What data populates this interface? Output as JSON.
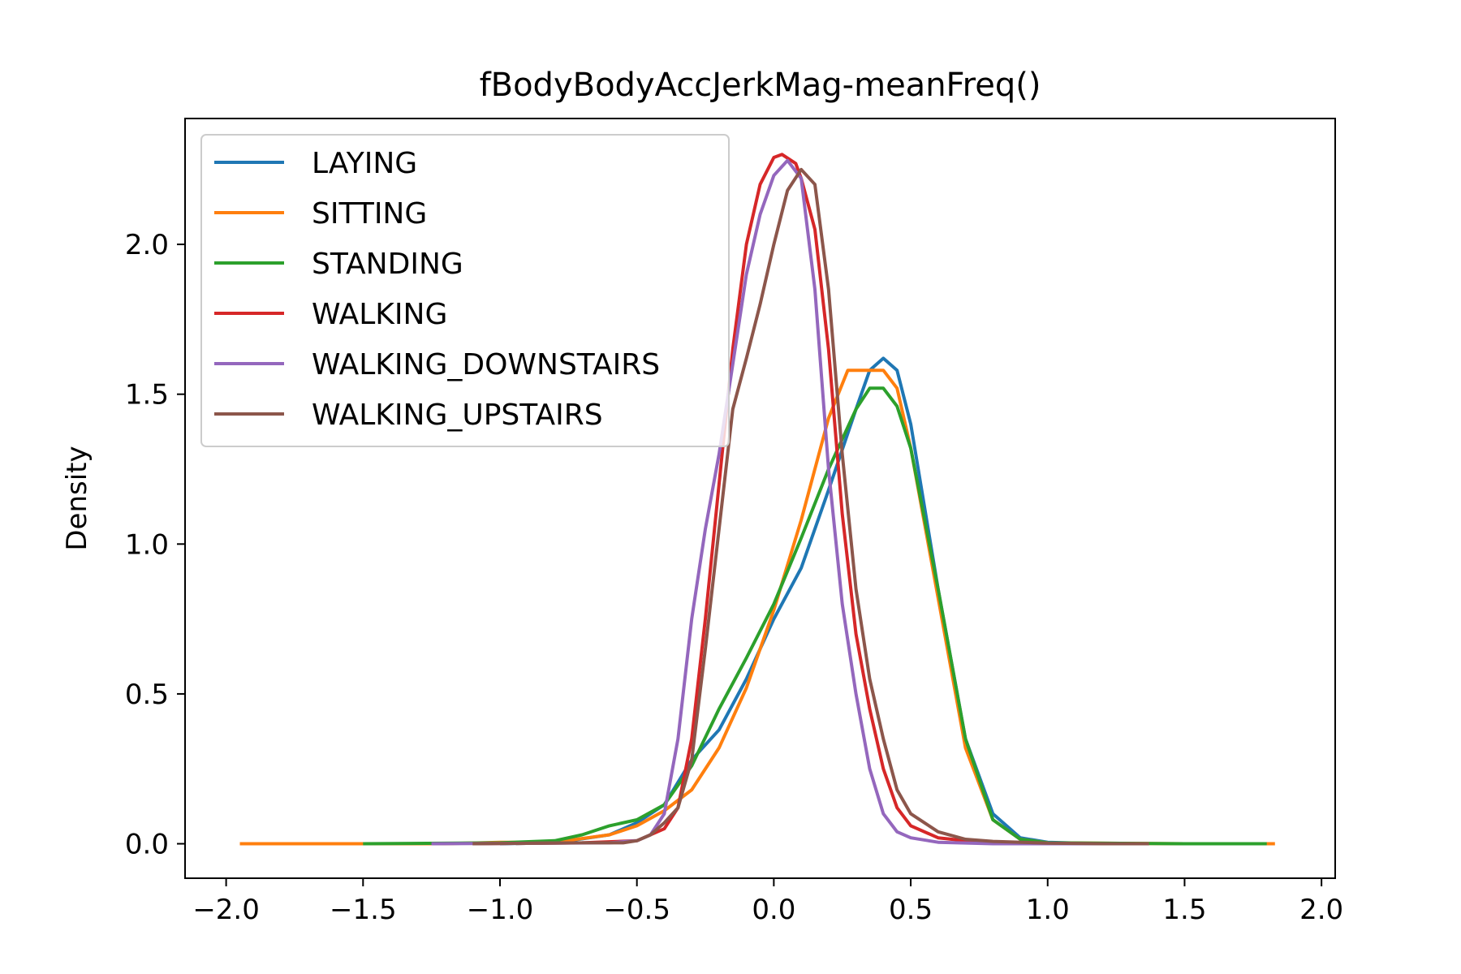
{
  "chart_data": {
    "type": "line",
    "title": "fBodyBodyAccJerkMag-meanFreq()",
    "xlabel": "",
    "ylabel": "Density",
    "xlim": [
      -2.15,
      2.05
    ],
    "ylim": [
      -0.115,
      2.42
    ],
    "xticks": [
      -2.0,
      -1.5,
      -1.0,
      -0.5,
      0.0,
      0.5,
      1.0,
      1.5,
      2.0
    ],
    "yticks": [
      0.0,
      0.5,
      1.0,
      1.5,
      2.0
    ],
    "xtick_labels": [
      "−2.0",
      "−1.5",
      "−1.0",
      "−0.5",
      "0.0",
      "0.5",
      "1.0",
      "1.5",
      "2.0"
    ],
    "ytick_labels": [
      "0.0",
      "0.5",
      "1.0",
      "1.5",
      "2.0"
    ],
    "grid": false,
    "legend_position": "top-left",
    "series": [
      {
        "name": "LAYING",
        "color": "#1f77b4",
        "points": [
          [
            -1.0,
            0.0
          ],
          [
            -0.8,
            0.003
          ],
          [
            -0.6,
            0.03
          ],
          [
            -0.5,
            0.07
          ],
          [
            -0.4,
            0.13
          ],
          [
            -0.3,
            0.28
          ],
          [
            -0.2,
            0.38
          ],
          [
            -0.1,
            0.55
          ],
          [
            0.0,
            0.75
          ],
          [
            0.1,
            0.92
          ],
          [
            0.2,
            1.18
          ],
          [
            0.3,
            1.45
          ],
          [
            0.35,
            1.58
          ],
          [
            0.4,
            1.62
          ],
          [
            0.45,
            1.58
          ],
          [
            0.5,
            1.4
          ],
          [
            0.6,
            0.85
          ],
          [
            0.7,
            0.35
          ],
          [
            0.8,
            0.1
          ],
          [
            0.9,
            0.02
          ],
          [
            1.0,
            0.005
          ],
          [
            1.2,
            0.0
          ],
          [
            1.37,
            0.0
          ]
        ]
      },
      {
        "name": "SITTING",
        "color": "#ff7f0e",
        "points": [
          [
            -1.95,
            0.0
          ],
          [
            -1.2,
            0.0
          ],
          [
            -1.0,
            0.005
          ],
          [
            -0.8,
            0.005
          ],
          [
            -0.6,
            0.03
          ],
          [
            -0.5,
            0.06
          ],
          [
            -0.4,
            0.11
          ],
          [
            -0.3,
            0.18
          ],
          [
            -0.2,
            0.32
          ],
          [
            -0.1,
            0.52
          ],
          [
            0.0,
            0.78
          ],
          [
            0.1,
            1.08
          ],
          [
            0.2,
            1.42
          ],
          [
            0.27,
            1.58
          ],
          [
            0.3,
            1.58
          ],
          [
            0.35,
            1.58
          ],
          [
            0.4,
            1.58
          ],
          [
            0.45,
            1.52
          ],
          [
            0.5,
            1.32
          ],
          [
            0.6,
            0.82
          ],
          [
            0.7,
            0.32
          ],
          [
            0.8,
            0.08
          ],
          [
            0.9,
            0.015
          ],
          [
            1.0,
            0.003
          ],
          [
            1.5,
            0.0
          ],
          [
            1.83,
            0.0
          ]
        ]
      },
      {
        "name": "STANDING",
        "color": "#2ca02c",
        "points": [
          [
            -1.5,
            0.0
          ],
          [
            -1.0,
            0.003
          ],
          [
            -0.8,
            0.01
          ],
          [
            -0.7,
            0.03
          ],
          [
            -0.6,
            0.06
          ],
          [
            -0.5,
            0.08
          ],
          [
            -0.4,
            0.13
          ],
          [
            -0.3,
            0.26
          ],
          [
            -0.2,
            0.45
          ],
          [
            -0.1,
            0.62
          ],
          [
            0.0,
            0.8
          ],
          [
            0.1,
            1.02
          ],
          [
            0.2,
            1.25
          ],
          [
            0.3,
            1.45
          ],
          [
            0.35,
            1.52
          ],
          [
            0.4,
            1.52
          ],
          [
            0.45,
            1.46
          ],
          [
            0.5,
            1.32
          ],
          [
            0.6,
            0.85
          ],
          [
            0.7,
            0.35
          ],
          [
            0.8,
            0.08
          ],
          [
            0.9,
            0.015
          ],
          [
            1.0,
            0.003
          ],
          [
            1.5,
            0.0
          ],
          [
            1.8,
            0.0
          ]
        ]
      },
      {
        "name": "WALKING",
        "color": "#d62728",
        "points": [
          [
            -1.1,
            0.0
          ],
          [
            -0.7,
            0.003
          ],
          [
            -0.5,
            0.01
          ],
          [
            -0.4,
            0.05
          ],
          [
            -0.35,
            0.12
          ],
          [
            -0.3,
            0.35
          ],
          [
            -0.25,
            0.75
          ],
          [
            -0.2,
            1.2
          ],
          [
            -0.15,
            1.65
          ],
          [
            -0.1,
            2.0
          ],
          [
            -0.05,
            2.2
          ],
          [
            0.0,
            2.29
          ],
          [
            0.03,
            2.3
          ],
          [
            0.08,
            2.27
          ],
          [
            0.1,
            2.22
          ],
          [
            0.15,
            2.05
          ],
          [
            0.2,
            1.65
          ],
          [
            0.25,
            1.1
          ],
          [
            0.3,
            0.7
          ],
          [
            0.35,
            0.45
          ],
          [
            0.4,
            0.25
          ],
          [
            0.45,
            0.12
          ],
          [
            0.5,
            0.06
          ],
          [
            0.6,
            0.02
          ],
          [
            0.7,
            0.01
          ],
          [
            0.8,
            0.005
          ],
          [
            1.0,
            0.0
          ],
          [
            1.35,
            0.0
          ]
        ]
      },
      {
        "name": "WALKING_DOWNSTAIRS",
        "color": "#9467bd",
        "points": [
          [
            -1.25,
            0.0
          ],
          [
            -0.6,
            0.003
          ],
          [
            -0.5,
            0.01
          ],
          [
            -0.45,
            0.03
          ],
          [
            -0.4,
            0.1
          ],
          [
            -0.35,
            0.35
          ],
          [
            -0.3,
            0.75
          ],
          [
            -0.25,
            1.05
          ],
          [
            -0.2,
            1.3
          ],
          [
            -0.15,
            1.6
          ],
          [
            -0.1,
            1.9
          ],
          [
            -0.05,
            2.1
          ],
          [
            0.0,
            2.23
          ],
          [
            0.05,
            2.28
          ],
          [
            0.1,
            2.22
          ],
          [
            0.15,
            1.85
          ],
          [
            0.2,
            1.25
          ],
          [
            0.25,
            0.8
          ],
          [
            0.3,
            0.5
          ],
          [
            0.35,
            0.25
          ],
          [
            0.4,
            0.1
          ],
          [
            0.45,
            0.04
          ],
          [
            0.5,
            0.02
          ],
          [
            0.6,
            0.005
          ],
          [
            0.8,
            0.0
          ],
          [
            1.3,
            0.0
          ]
        ]
      },
      {
        "name": "WALKING_UPSTAIRS",
        "color": "#8c564b",
        "points": [
          [
            -1.1,
            0.0
          ],
          [
            -0.7,
            0.003
          ],
          [
            -0.55,
            0.003
          ],
          [
            -0.5,
            0.01
          ],
          [
            -0.45,
            0.03
          ],
          [
            -0.4,
            0.07
          ],
          [
            -0.35,
            0.12
          ],
          [
            -0.3,
            0.28
          ],
          [
            -0.25,
            0.65
          ],
          [
            -0.2,
            1.05
          ],
          [
            -0.15,
            1.45
          ],
          [
            -0.1,
            1.62
          ],
          [
            -0.05,
            1.8
          ],
          [
            0.0,
            2.0
          ],
          [
            0.05,
            2.18
          ],
          [
            0.1,
            2.25
          ],
          [
            0.15,
            2.2
          ],
          [
            0.2,
            1.85
          ],
          [
            0.25,
            1.3
          ],
          [
            0.3,
            0.85
          ],
          [
            0.35,
            0.55
          ],
          [
            0.4,
            0.35
          ],
          [
            0.45,
            0.18
          ],
          [
            0.5,
            0.1
          ],
          [
            0.6,
            0.04
          ],
          [
            0.7,
            0.015
          ],
          [
            0.8,
            0.008
          ],
          [
            1.0,
            0.002
          ],
          [
            1.2,
            0.0
          ],
          [
            1.37,
            0.0
          ]
        ]
      }
    ]
  }
}
